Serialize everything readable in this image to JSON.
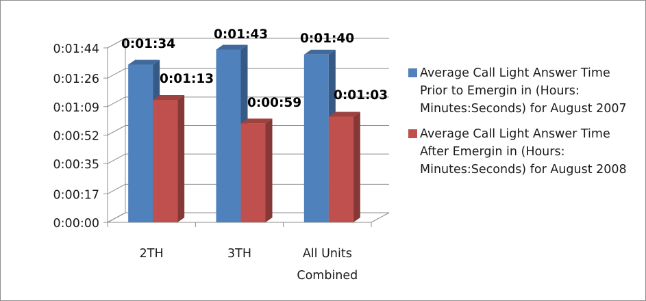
{
  "chart_data": {
    "type": "bar",
    "style": "3d-clustered-column",
    "categories": [
      "2TH",
      "3TH",
      "All Units\nCombined"
    ],
    "series": [
      {
        "name": "Average Call Light Answer Time Prior to Emergin in (Hours: Minutes:Seconds) for August 2007",
        "color": "#4f81bd",
        "values_seconds": [
          94,
          103,
          100
        ],
        "data_labels": [
          "0:01:34",
          "0:01:43",
          "0:01:40"
        ]
      },
      {
        "name": "Average Call Light Answer Time After Emergin in (Hours: Minutes:Seconds) for August 2008",
        "color": "#c0504d",
        "values_seconds": [
          73,
          59,
          63
        ],
        "data_labels": [
          "0:01:13",
          "0:00:59",
          "0:01:03"
        ]
      }
    ],
    "y_ticks_seconds": [
      0,
      17,
      35,
      52,
      69,
      86,
      104
    ],
    "y_tick_labels": [
      "0:00:00",
      "0:00:17",
      "0:00:35",
      "0:00:52",
      "0:01:09",
      "0:01:26",
      "0:01:44"
    ],
    "ylim_seconds": [
      0,
      104
    ],
    "grid": true,
    "legend_position": "right"
  }
}
